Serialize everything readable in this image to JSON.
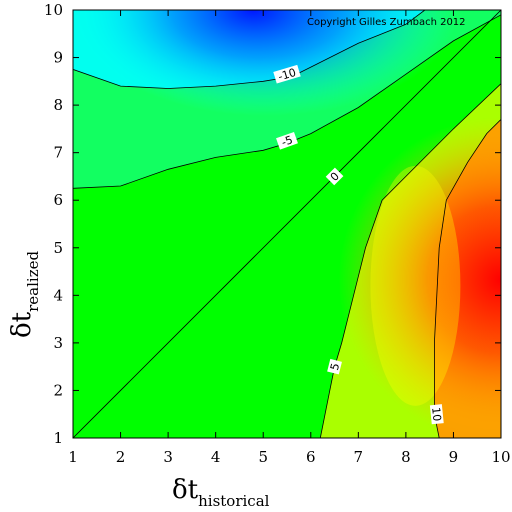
{
  "chart_data": {
    "type": "heatmap",
    "xlim": [
      1,
      10
    ],
    "ylim": [
      1,
      10
    ],
    "x_ticks": [
      1,
      2,
      3,
      4,
      5,
      6,
      7,
      8,
      9,
      10
    ],
    "y_ticks": [
      1,
      2,
      3,
      4,
      5,
      6,
      7,
      8,
      9,
      10
    ],
    "xlabel_main": "δt",
    "xlabel_sub": "historical",
    "ylabel_main": "δt",
    "ylabel_sub": "realized",
    "annotation": "Copyright Gilles Zumbach 2012",
    "colormap": [
      "#0000ff",
      "#00ffff",
      "#00ff00",
      "#ffff00",
      "#ff0000"
    ],
    "diagonal": [
      [
        1,
        1
      ],
      [
        10,
        10
      ]
    ],
    "contours": [
      {
        "level": "-10",
        "points": [
          [
            1.0,
            8.75
          ],
          [
            2.0,
            8.4
          ],
          [
            3.0,
            8.35
          ],
          [
            4.0,
            8.4
          ],
          [
            5.0,
            8.5
          ],
          [
            5.6,
            8.6
          ],
          [
            6.0,
            8.8
          ],
          [
            7.0,
            9.3
          ],
          [
            8.0,
            9.7
          ],
          [
            8.4,
            10.0
          ]
        ],
        "label_at": [
          5.5,
          8.65
        ]
      },
      {
        "level": "-5",
        "points": [
          [
            1.0,
            6.25
          ],
          [
            2.0,
            6.3
          ],
          [
            3.0,
            6.65
          ],
          [
            4.0,
            6.9
          ],
          [
            5.0,
            7.05
          ],
          [
            5.5,
            7.2
          ],
          [
            6.0,
            7.4
          ],
          [
            7.0,
            7.95
          ],
          [
            8.0,
            8.65
          ],
          [
            9.0,
            9.35
          ],
          [
            10.0,
            9.9
          ]
        ],
        "label_at": [
          5.5,
          7.25
        ]
      },
      {
        "level": "0",
        "points": [
          [
            1.0,
            1.0
          ],
          [
            10.0,
            10.0
          ]
        ],
        "label_at": [
          6.5,
          6.5
        ]
      },
      {
        "level": "5",
        "points": [
          [
            6.2,
            1.0
          ],
          [
            6.4,
            2.0
          ],
          [
            6.5,
            2.5
          ],
          [
            6.65,
            3.0
          ],
          [
            6.9,
            4.0
          ],
          [
            7.15,
            5.0
          ],
          [
            7.5,
            6.0
          ],
          [
            8.0,
            6.5
          ],
          [
            9.0,
            7.5
          ],
          [
            10.0,
            8.45
          ]
        ],
        "label_at": [
          6.5,
          2.5
        ]
      },
      {
        "level": "10",
        "points": [
          [
            8.7,
            1.0
          ],
          [
            8.6,
            1.5
          ],
          [
            8.6,
            2.0
          ],
          [
            8.6,
            3.0
          ],
          [
            8.65,
            4.0
          ],
          [
            8.7,
            5.0
          ],
          [
            8.85,
            6.0
          ],
          [
            9.3,
            6.8
          ],
          [
            9.7,
            7.4
          ],
          [
            10.0,
            7.7
          ]
        ],
        "label_at": [
          8.65,
          1.5
        ]
      }
    ]
  }
}
